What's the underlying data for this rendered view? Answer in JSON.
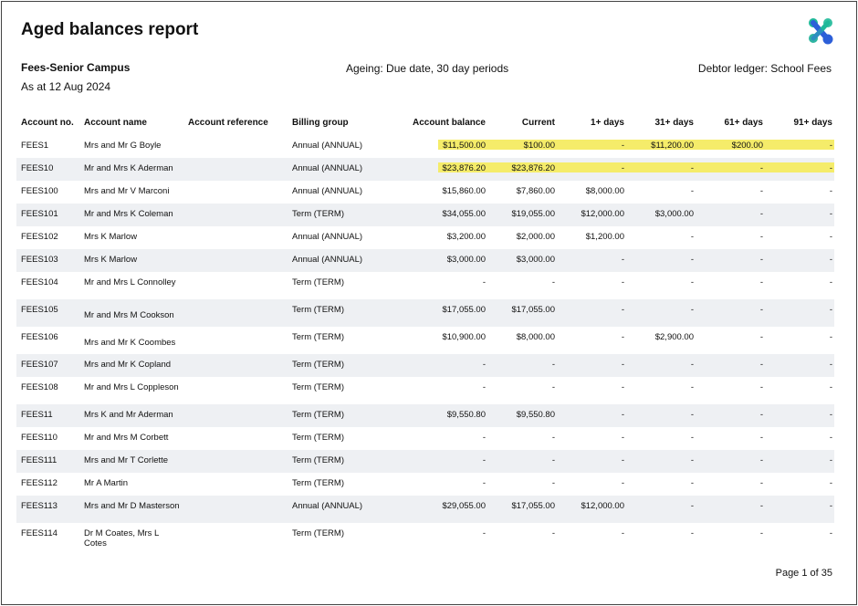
{
  "title": "Aged balances report",
  "header": {
    "campus": "Fees-Senior Campus",
    "as_at": "As at 12 Aug 2024",
    "ageing": "Ageing:  Due date, 30 day periods",
    "ledger": "Debtor ledger: School Fees"
  },
  "columns": {
    "account_no": "Account no.",
    "account_name": "Account name",
    "account_reference": "Account reference",
    "billing_group": "Billing group",
    "account_balance": "Account balance",
    "current": "Current",
    "d1": "1+ days",
    "d31": "31+ days",
    "d61": "61+ days",
    "d91": "91+ days"
  },
  "rows": [
    {
      "no": "FEES1",
      "name": "Mrs  and Mr G Boyle",
      "ref": "",
      "bg": "Annual (ANNUAL)",
      "bal": "$11,500.00",
      "cur": "$100.00",
      "d1": "-",
      "d31": "$11,200.00",
      "d61": "$200.00",
      "d91": "-"
    },
    {
      "no": "FEES10",
      "name": "Mr  and Mrs K Aderman",
      "ref": "",
      "bg": "Annual (ANNUAL)",
      "bal": "$23,876.20",
      "cur": "$23,876.20",
      "d1": "-",
      "d31": "-",
      "d61": "-",
      "d91": "-"
    },
    {
      "no": "FEES100",
      "name": "Mrs  and Mr V Marconi",
      "ref": "",
      "bg": "Annual (ANNUAL)",
      "bal": "$15,860.00",
      "cur": "$7,860.00",
      "d1": "$8,000.00",
      "d31": "-",
      "d61": "-",
      "d91": "-"
    },
    {
      "no": "FEES101",
      "name": "Mr  and Mrs K Coleman",
      "ref": "",
      "bg": "Term (TERM)",
      "bal": "$34,055.00",
      "cur": "$19,055.00",
      "d1": "$12,000.00",
      "d31": "$3,000.00",
      "d61": "-",
      "d91": "-"
    },
    {
      "no": "FEES102",
      "name": "Mrs K Marlow",
      "ref": "",
      "bg": "Annual (ANNUAL)",
      "bal": "$3,200.00",
      "cur": "$2,000.00",
      "d1": "$1,200.00",
      "d31": "-",
      "d61": "-",
      "d91": "-"
    },
    {
      "no": "FEES103",
      "name": "Mrs K Marlow",
      "ref": "",
      "bg": "Annual (ANNUAL)",
      "bal": "$3,000.00",
      "cur": "$3,000.00",
      "d1": "-",
      "d31": "-",
      "d61": "-",
      "d91": "-"
    },
    {
      "no": "FEES104",
      "name": "Mr  and Mrs L Connolley",
      "ref": "",
      "bg": "Term (TERM)",
      "bal": "-",
      "cur": "-",
      "d1": "-",
      "d31": "-",
      "d61": "-",
      "d91": "-"
    },
    {
      "no": "FEES105",
      "name": "Mr  and Mrs M Cookson",
      "ref": "",
      "bg": "Term (TERM)",
      "bal": "$17,055.00",
      "cur": "$17,055.00",
      "d1": "-",
      "d31": "-",
      "d61": "-",
      "d91": "-"
    },
    {
      "no": "FEES106",
      "name": "Mrs  and Mr K Coombes",
      "ref": "",
      "bg": "Term (TERM)",
      "bal": "$10,900.00",
      "cur": "$8,000.00",
      "d1": "-",
      "d31": "$2,900.00",
      "d61": "-",
      "d91": "-"
    },
    {
      "no": "FEES107",
      "name": "Mrs  and Mr K Copland",
      "ref": "",
      "bg": "Term (TERM)",
      "bal": "-",
      "cur": "-",
      "d1": "-",
      "d31": "-",
      "d61": "-",
      "d91": "-"
    },
    {
      "no": "FEES108",
      "name": "Mr  and Mrs L Coppleson",
      "ref": "",
      "bg": "Term (TERM)",
      "bal": "-",
      "cur": "-",
      "d1": "-",
      "d31": "-",
      "d61": "-",
      "d91": "-"
    },
    {
      "no": "FEES11",
      "name": "Mrs K and Mr  Aderman",
      "ref": "",
      "bg": "Term (TERM)",
      "bal": "$9,550.80",
      "cur": "$9,550.80",
      "d1": "-",
      "d31": "-",
      "d61": "-",
      "d91": "-"
    },
    {
      "no": "FEES110",
      "name": "Mr  and Mrs M Corbett",
      "ref": "",
      "bg": "Term (TERM)",
      "bal": "-",
      "cur": "-",
      "d1": "-",
      "d31": "-",
      "d61": "-",
      "d91": "-"
    },
    {
      "no": "FEES111",
      "name": "Mrs  and Mr T Corlette",
      "ref": "",
      "bg": "Term (TERM)",
      "bal": "-",
      "cur": "-",
      "d1": "-",
      "d31": "-",
      "d61": "-",
      "d91": "-"
    },
    {
      "no": "FEES112",
      "name": "Mr A Martin",
      "ref": "",
      "bg": "Term (TERM)",
      "bal": "-",
      "cur": "-",
      "d1": "-",
      "d31": "-",
      "d61": "-",
      "d91": "-"
    },
    {
      "no": "FEES113",
      "name": "Mrs  and Mr D Masterson",
      "ref": "",
      "bg": "Annual (ANNUAL)",
      "bal": "$29,055.00",
      "cur": "$17,055.00",
      "d1": "$12,000.00",
      "d31": "-",
      "d61": "-",
      "d91": "-"
    },
    {
      "no": "FEES114",
      "name": "Dr M Coates, Mrs L Cotes",
      "ref": "",
      "bg": "Term (TERM)",
      "bal": "-",
      "cur": "-",
      "d1": "-",
      "d31": "-",
      "d61": "-",
      "d91": "-"
    }
  ],
  "footer": "Page 1 of 35",
  "colors": {
    "highlight": "#f5ec6a",
    "row_alt": "#eef0f3",
    "logo_green": "#1fb89a",
    "logo_blue": "#2d5fd8"
  }
}
